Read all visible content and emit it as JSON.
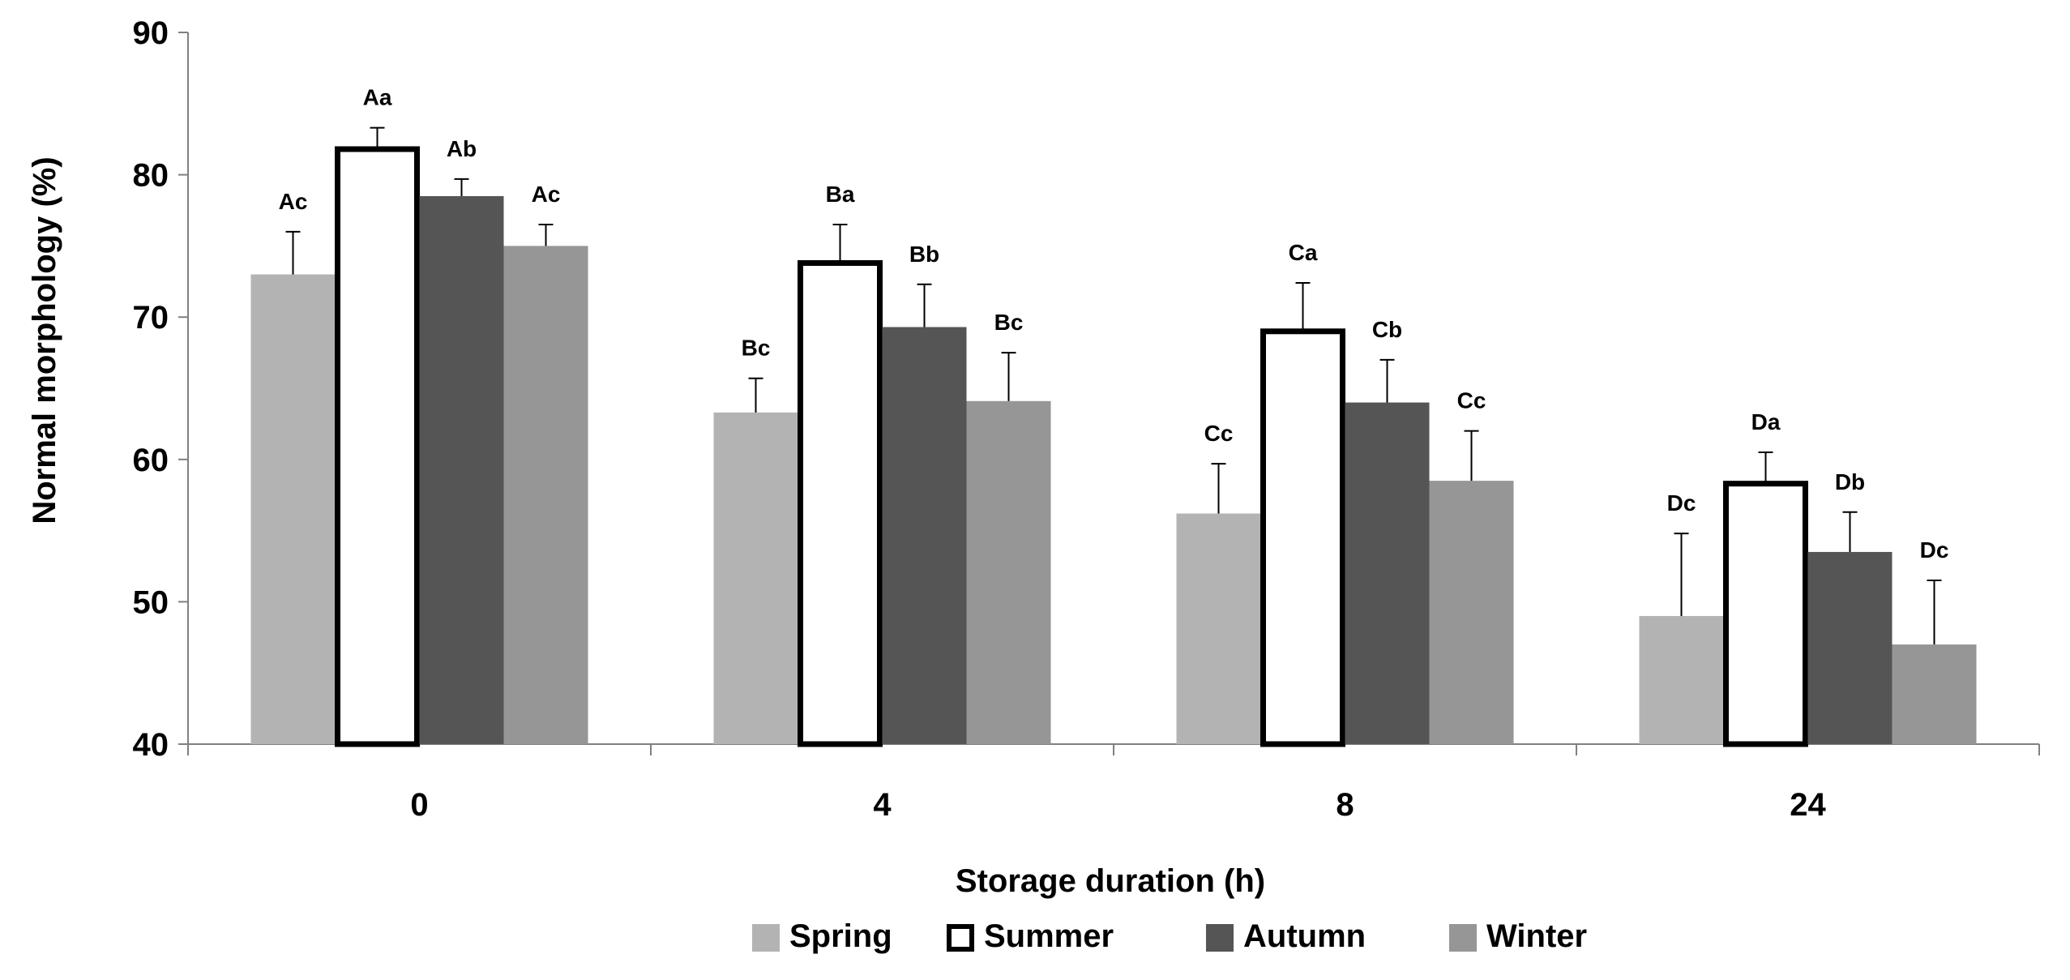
{
  "chart_data": {
    "type": "bar",
    "title": "",
    "xlabel": "Storage duration (h)",
    "ylabel": "Normal morphology (%)",
    "ylim": [
      40,
      90
    ],
    "yticks": [
      40,
      50,
      60,
      70,
      80,
      90
    ],
    "categories": [
      "0",
      "4",
      "8",
      "24"
    ],
    "legend_position": "bottom",
    "series": [
      {
        "name": "Spring",
        "color": "#b3b3b3",
        "outline": false,
        "values": [
          73.0,
          63.3,
          56.2,
          49.0
        ],
        "errors": [
          3.0,
          2.4,
          3.5,
          5.8
        ],
        "labels": [
          "Ac",
          "Bc",
          "Cc",
          "Dc"
        ]
      },
      {
        "name": "Summer",
        "color": "#ffffff",
        "outline": true,
        "values": [
          81.8,
          73.8,
          69.0,
          58.3
        ],
        "errors": [
          1.5,
          2.7,
          3.4,
          2.2
        ],
        "labels": [
          "Aa",
          "Ba",
          "Ca",
          "Da"
        ]
      },
      {
        "name": "Autumn",
        "color": "#555555",
        "outline": false,
        "values": [
          78.5,
          69.3,
          64.0,
          53.5
        ],
        "errors": [
          1.2,
          3.0,
          3.0,
          2.8
        ],
        "labels": [
          "Ab",
          "Bb",
          "Cb",
          "Db"
        ]
      },
      {
        "name": "Winter",
        "color": "#969696",
        "outline": false,
        "values": [
          75.0,
          64.1,
          58.5,
          47.0
        ],
        "errors": [
          1.5,
          3.4,
          3.5,
          4.5
        ],
        "labels": [
          "Ac",
          "Bc",
          "Cc",
          "Dc"
        ]
      }
    ]
  }
}
